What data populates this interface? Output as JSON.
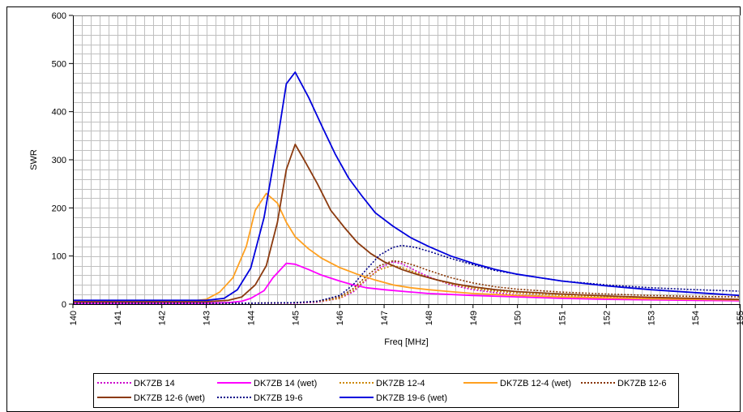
{
  "chart_data": {
    "type": "line",
    "title": "",
    "xlabel": "Freq [MHz]",
    "ylabel": "SWR",
    "xlim": [
      140,
      155
    ],
    "ylim": [
      0,
      600
    ],
    "x_ticks": [
      "140",
      "141",
      "142",
      "143",
      "144",
      "145",
      "146",
      "147",
      "148",
      "149",
      "150",
      "151",
      "152",
      "153",
      "154",
      "155"
    ],
    "y_ticks": [
      "0",
      "100",
      "200",
      "300",
      "400",
      "500",
      "600"
    ],
    "grid": true,
    "legend_position": "bottom",
    "series": [
      {
        "name": "DK7ZB 14",
        "color": "#cc00cc",
        "style": "dotted",
        "points": [
          [
            140,
            2
          ],
          [
            143,
            2
          ],
          [
            144,
            2
          ],
          [
            145,
            2
          ],
          [
            145.5,
            4
          ],
          [
            146,
            12
          ],
          [
            146.3,
            25
          ],
          [
            146.6,
            50
          ],
          [
            146.9,
            75
          ],
          [
            147.2,
            88
          ],
          [
            147.4,
            84
          ],
          [
            147.7,
            70
          ],
          [
            148,
            57
          ],
          [
            148.5,
            40
          ],
          [
            149,
            30
          ],
          [
            149.5,
            24
          ],
          [
            150,
            19
          ],
          [
            151,
            15
          ],
          [
            152,
            12
          ],
          [
            153,
            10
          ],
          [
            154,
            8
          ],
          [
            155,
            7
          ]
        ]
      },
      {
        "name": "DK7ZB 14 (wet)",
        "color": "#ff00ff",
        "style": "solid",
        "points": [
          [
            140,
            2
          ],
          [
            143,
            2
          ],
          [
            143.5,
            3
          ],
          [
            143.8,
            6
          ],
          [
            144,
            12
          ],
          [
            144.3,
            28
          ],
          [
            144.5,
            55
          ],
          [
            144.8,
            85
          ],
          [
            145,
            83
          ],
          [
            145.3,
            72
          ],
          [
            145.6,
            60
          ],
          [
            146,
            48
          ],
          [
            146.3,
            40
          ],
          [
            146.6,
            34
          ],
          [
            147,
            30
          ],
          [
            147.5,
            26
          ],
          [
            148,
            22
          ],
          [
            149,
            18
          ],
          [
            150,
            15
          ],
          [
            151,
            12
          ],
          [
            152,
            10
          ],
          [
            153,
            9
          ],
          [
            154,
            8
          ],
          [
            155,
            7
          ]
        ]
      },
      {
        "name": "DK7ZB 12-4",
        "color": "#cc8800",
        "style": "dotted",
        "points": [
          [
            140,
            2
          ],
          [
            143,
            2
          ],
          [
            144,
            2
          ],
          [
            145,
            3
          ],
          [
            145.5,
            5
          ],
          [
            146,
            12
          ],
          [
            146.3,
            28
          ],
          [
            146.6,
            52
          ],
          [
            146.9,
            72
          ],
          [
            147.2,
            80
          ],
          [
            147.4,
            76
          ],
          [
            147.7,
            66
          ],
          [
            148,
            55
          ],
          [
            148.5,
            42
          ],
          [
            149,
            33
          ],
          [
            149.5,
            27
          ],
          [
            150,
            23
          ],
          [
            151,
            18
          ],
          [
            152,
            15
          ],
          [
            153,
            12
          ],
          [
            154,
            11
          ],
          [
            155,
            10
          ]
        ]
      },
      {
        "name": "DK7ZB 12-4 (wet)",
        "color": "#ffa020",
        "style": "solid",
        "points": [
          [
            140,
            5
          ],
          [
            142.5,
            5
          ],
          [
            143,
            10
          ],
          [
            143.3,
            25
          ],
          [
            143.6,
            55
          ],
          [
            143.9,
            120
          ],
          [
            144.1,
            195
          ],
          [
            144.35,
            230
          ],
          [
            144.6,
            210
          ],
          [
            144.8,
            170
          ],
          [
            145,
            140
          ],
          [
            145.3,
            115
          ],
          [
            145.6,
            95
          ],
          [
            146,
            76
          ],
          [
            146.4,
            62
          ],
          [
            146.8,
            50
          ],
          [
            147.2,
            40
          ],
          [
            147.6,
            34
          ],
          [
            148,
            30
          ],
          [
            148.5,
            26
          ],
          [
            149,
            22
          ],
          [
            150,
            18
          ],
          [
            151,
            15
          ],
          [
            152,
            13
          ],
          [
            153,
            11
          ],
          [
            154,
            10
          ],
          [
            155,
            9
          ]
        ]
      },
      {
        "name": "DK7ZB 12-6",
        "color": "#883300",
        "style": "dotted",
        "points": [
          [
            140,
            2
          ],
          [
            143,
            2
          ],
          [
            144,
            2
          ],
          [
            145,
            3
          ],
          [
            145.5,
            6
          ],
          [
            146,
            15
          ],
          [
            146.3,
            32
          ],
          [
            146.6,
            58
          ],
          [
            146.9,
            80
          ],
          [
            147.2,
            90
          ],
          [
            147.4,
            88
          ],
          [
            147.7,
            80
          ],
          [
            148,
            70
          ],
          [
            148.5,
            55
          ],
          [
            149,
            44
          ],
          [
            149.5,
            36
          ],
          [
            150,
            31
          ],
          [
            151,
            25
          ],
          [
            152,
            21
          ],
          [
            153,
            18
          ],
          [
            154,
            16
          ],
          [
            155,
            15
          ]
        ]
      },
      {
        "name": "DK7ZB 12-6 (wet)",
        "color": "#8b3a0f",
        "style": "solid",
        "points": [
          [
            140,
            5
          ],
          [
            143,
            5
          ],
          [
            143.5,
            8
          ],
          [
            143.8,
            15
          ],
          [
            144.1,
            40
          ],
          [
            144.35,
            80
          ],
          [
            144.6,
            170
          ],
          [
            144.8,
            280
          ],
          [
            145,
            332
          ],
          [
            145.2,
            300
          ],
          [
            145.5,
            250
          ],
          [
            145.8,
            195
          ],
          [
            146.1,
            160
          ],
          [
            146.4,
            128
          ],
          [
            146.7,
            105
          ],
          [
            147,
            88
          ],
          [
            147.4,
            72
          ],
          [
            147.8,
            60
          ],
          [
            148.2,
            50
          ],
          [
            148.6,
            42
          ],
          [
            149,
            36
          ],
          [
            149.5,
            30
          ],
          [
            150,
            26
          ],
          [
            151,
            21
          ],
          [
            152,
            17
          ],
          [
            153,
            14
          ],
          [
            154,
            12
          ],
          [
            155,
            10
          ]
        ]
      },
      {
        "name": "DK7ZB 19-6",
        "color": "#000088",
        "style": "dotted",
        "points": [
          [
            140,
            2
          ],
          [
            143,
            2
          ],
          [
            144,
            2
          ],
          [
            145,
            3
          ],
          [
            145.5,
            6
          ],
          [
            146,
            18
          ],
          [
            146.3,
            40
          ],
          [
            146.6,
            72
          ],
          [
            146.9,
            102
          ],
          [
            147.2,
            118
          ],
          [
            147.4,
            122
          ],
          [
            147.7,
            118
          ],
          [
            148,
            110
          ],
          [
            148.5,
            95
          ],
          [
            149,
            82
          ],
          [
            149.5,
            70
          ],
          [
            150,
            62
          ],
          [
            150.5,
            55
          ],
          [
            151,
            48
          ],
          [
            152,
            40
          ],
          [
            153,
            34
          ],
          [
            154,
            30
          ],
          [
            155,
            27
          ]
        ]
      },
      {
        "name": "DK7ZB 19-6 (wet)",
        "color": "#0000dd",
        "style": "solid",
        "points": [
          [
            140,
            8
          ],
          [
            143,
            8
          ],
          [
            143.4,
            12
          ],
          [
            143.7,
            30
          ],
          [
            144,
            75
          ],
          [
            144.3,
            180
          ],
          [
            144.6,
            340
          ],
          [
            144.8,
            458
          ],
          [
            145,
            482
          ],
          [
            145.3,
            430
          ],
          [
            145.6,
            370
          ],
          [
            145.9,
            312
          ],
          [
            146.2,
            262
          ],
          [
            146.5,
            225
          ],
          [
            146.8,
            190
          ],
          [
            147.2,
            162
          ],
          [
            147.6,
            138
          ],
          [
            148,
            120
          ],
          [
            148.5,
            100
          ],
          [
            149,
            85
          ],
          [
            149.5,
            72
          ],
          [
            150,
            62
          ],
          [
            150.5,
            55
          ],
          [
            151,
            48
          ],
          [
            152,
            38
          ],
          [
            153,
            30
          ],
          [
            154,
            24
          ],
          [
            155,
            18
          ]
        ]
      }
    ]
  }
}
